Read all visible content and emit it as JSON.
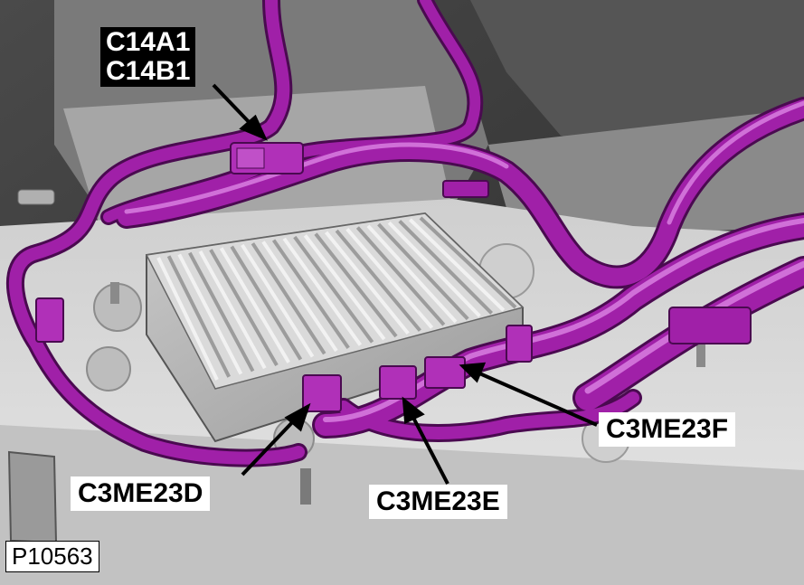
{
  "figure_id": "P10563",
  "callouts": {
    "top_connector": {
      "line1": "C14A1",
      "line2": "C14B1"
    },
    "connector_d": "C3ME23D",
    "connector_e": "C3ME23E",
    "connector_f": "C3ME23F"
  },
  "colors": {
    "harness": "#a020a8",
    "harness_dark": "#5a0f60",
    "harness_light": "#d060d8",
    "module_body": "#b9b9b9",
    "module_fins": "#e4e4e4",
    "panel": "#d6d6d6",
    "background_dark": "#3a3a3a"
  }
}
